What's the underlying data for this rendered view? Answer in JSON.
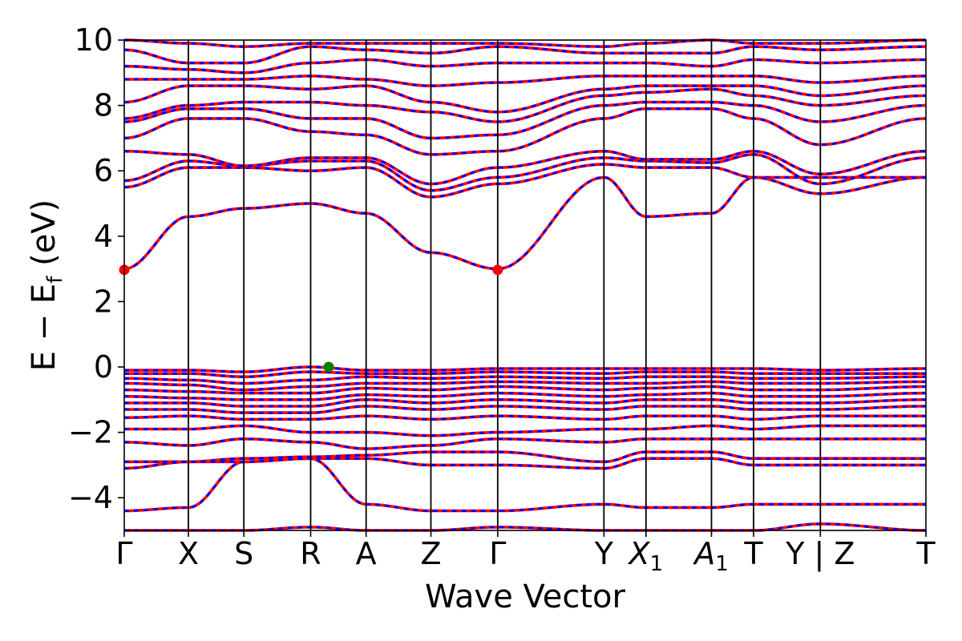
{
  "chart_data": {
    "type": "line",
    "xlabel": "Wave Vector",
    "ylabel": "E − E",
    "ylabel_sub": "f",
    "ylabel_unit": "(eV)",
    "ylim": [
      -5,
      10
    ],
    "yticks": [
      10,
      8,
      6,
      4,
      2,
      0,
      -2,
      -4
    ],
    "ytick_labels": [
      "10",
      "8",
      "6",
      "4",
      "2",
      "0",
      "−2",
      "−4"
    ],
    "grid": false,
    "kpath": {
      "positions": [
        0,
        0.96,
        1.79,
        2.79,
        3.62,
        4.59,
        5.59,
        7.18,
        7.81,
        8.79,
        9.42,
        10.42,
        12.0
      ],
      "labels": [
        {
          "main": "Γ",
          "sub": ""
        },
        {
          "main": "X",
          "sub": ""
        },
        {
          "main": "S",
          "sub": ""
        },
        {
          "main": "R",
          "sub": ""
        },
        {
          "main": "A",
          "sub": ""
        },
        {
          "main": "Z",
          "sub": ""
        },
        {
          "main": "Γ",
          "sub": ""
        },
        {
          "main": "Y",
          "sub": ""
        },
        {
          "main": "X",
          "sub": "1"
        },
        {
          "main": "A",
          "sub": "1"
        },
        {
          "main": "T",
          "sub": ""
        },
        {
          "main": "Y | Z",
          "sub": ""
        },
        {
          "main": "T",
          "sub": ""
        }
      ]
    },
    "series_styles": [
      {
        "role": "bands-solid",
        "color": "#ff0000"
      },
      {
        "role": "bands-dashed",
        "color": "#0000ff"
      }
    ],
    "band_anchors": {
      "conduction": [
        [
          3.0,
          4.6,
          4.85,
          5.0,
          4.7,
          3.5,
          3.0,
          5.8,
          4.6,
          4.7,
          5.8,
          5.8,
          5.8
        ],
        [
          5.5,
          6.1,
          6.1,
          6.0,
          6.1,
          5.2,
          5.6,
          6.2,
          6.1,
          6.1,
          5.8,
          5.3,
          5.8
        ],
        [
          5.7,
          6.3,
          6.15,
          6.3,
          6.3,
          5.4,
          5.8,
          6.4,
          6.3,
          6.25,
          6.5,
          5.6,
          6.4
        ],
        [
          6.6,
          6.5,
          6.15,
          6.4,
          6.4,
          5.6,
          6.1,
          6.6,
          6.35,
          6.35,
          6.6,
          5.9,
          6.6
        ],
        [
          7.0,
          7.6,
          7.6,
          7.2,
          7.1,
          6.5,
          6.6,
          7.6,
          7.9,
          7.9,
          7.6,
          6.8,
          7.6
        ],
        [
          7.5,
          7.9,
          7.9,
          7.6,
          7.6,
          7.0,
          7.1,
          8.0,
          8.1,
          8.1,
          8.0,
          7.5,
          8.0
        ],
        [
          7.6,
          8.0,
          8.1,
          8.1,
          8.0,
          7.8,
          7.5,
          8.3,
          8.4,
          8.5,
          8.3,
          8.0,
          8.3
        ],
        [
          8.1,
          8.6,
          8.6,
          8.5,
          8.6,
          8.1,
          7.8,
          8.5,
          8.6,
          8.6,
          8.6,
          8.3,
          8.6
        ],
        [
          8.8,
          8.8,
          8.8,
          8.9,
          8.8,
          8.6,
          8.7,
          8.9,
          8.9,
          8.9,
          8.9,
          8.7,
          8.9
        ],
        [
          9.2,
          9.1,
          9.0,
          9.3,
          9.4,
          9.2,
          9.3,
          9.3,
          9.3,
          9.2,
          9.4,
          9.3,
          9.4
        ],
        [
          9.7,
          9.3,
          9.3,
          9.8,
          9.7,
          9.6,
          9.8,
          9.6,
          9.6,
          9.6,
          9.8,
          9.7,
          9.8
        ],
        [
          10.0,
          9.9,
          9.8,
          9.9,
          9.9,
          9.9,
          9.9,
          9.8,
          9.9,
          10.0,
          9.9,
          9.9,
          10.0
        ]
      ],
      "valence": [
        [
          -0.1,
          -0.1,
          -0.15,
          0.0,
          -0.1,
          -0.1,
          -0.05,
          -0.05,
          -0.05,
          -0.05,
          -0.05,
          -0.1,
          -0.05
        ],
        [
          -0.2,
          -0.2,
          -0.3,
          -0.15,
          -0.2,
          -0.2,
          -0.15,
          -0.2,
          -0.15,
          -0.15,
          -0.2,
          -0.2,
          -0.2
        ],
        [
          -0.35,
          -0.4,
          -0.5,
          -0.4,
          -0.3,
          -0.35,
          -0.3,
          -0.35,
          -0.3,
          -0.3,
          -0.35,
          -0.35,
          -0.3
        ],
        [
          -0.5,
          -0.55,
          -0.7,
          -0.6,
          -0.5,
          -0.5,
          -0.45,
          -0.5,
          -0.5,
          -0.45,
          -0.5,
          -0.5,
          -0.45
        ],
        [
          -0.7,
          -0.75,
          -0.8,
          -0.8,
          -0.65,
          -0.7,
          -0.6,
          -0.7,
          -0.65,
          -0.6,
          -0.7,
          -0.7,
          -0.6
        ],
        [
          -0.9,
          -0.95,
          -1.0,
          -1.0,
          -0.85,
          -0.9,
          -0.8,
          -0.9,
          -0.85,
          -0.8,
          -0.9,
          -0.9,
          -0.8
        ],
        [
          -1.1,
          -1.1,
          -1.2,
          -1.2,
          -1.0,
          -1.1,
          -1.0,
          -1.1,
          -1.0,
          -1.0,
          -1.1,
          -1.1,
          -1.0
        ],
        [
          -1.3,
          -1.3,
          -1.4,
          -1.4,
          -1.2,
          -1.3,
          -1.2,
          -1.3,
          -1.2,
          -1.2,
          -1.3,
          -1.3,
          -1.2
        ],
        [
          -1.55,
          -1.5,
          -1.6,
          -1.6,
          -1.5,
          -1.6,
          -1.5,
          -1.6,
          -1.5,
          -1.5,
          -1.6,
          -1.5,
          -1.5
        ],
        [
          -1.9,
          -1.9,
          -1.8,
          -2.0,
          -2.0,
          -2.1,
          -2.0,
          -1.9,
          -1.9,
          -1.8,
          -1.9,
          -1.8,
          -1.8
        ],
        [
          -2.3,
          -2.4,
          -2.2,
          -2.3,
          -2.5,
          -2.4,
          -2.2,
          -2.3,
          -2.2,
          -2.2,
          -2.2,
          -2.2,
          -2.2
        ],
        [
          -2.9,
          -2.9,
          -2.8,
          -2.75,
          -2.7,
          -2.6,
          -2.6,
          -2.9,
          -2.6,
          -2.6,
          -2.8,
          -2.8,
          -2.8
        ],
        [
          -3.1,
          -2.9,
          -2.9,
          -2.8,
          -2.8,
          -3.0,
          -3.0,
          -3.1,
          -2.8,
          -2.8,
          -3.0,
          -3.0,
          -3.0
        ],
        [
          -4.4,
          -4.3,
          -2.9,
          -2.8,
          -4.2,
          -4.4,
          -4.4,
          -4.2,
          -4.3,
          -4.3,
          -4.2,
          -4.2,
          -4.2
        ],
        [
          -5.0,
          -5.0,
          -5.0,
          -4.9,
          -5.0,
          -5.0,
          -4.9,
          -5.0,
          -5.0,
          -5.0,
          -5.0,
          -4.8,
          -5.0
        ]
      ]
    },
    "points": [
      {
        "name": "CBM",
        "x": 0.0,
        "y": 2.97,
        "color": "#ff0000"
      },
      {
        "name": "CBM",
        "x": 5.59,
        "y": 2.97,
        "color": "#ff0000"
      },
      {
        "name": "VBM",
        "x": 3.06,
        "y": 0.0,
        "color": "#008000"
      }
    ]
  }
}
